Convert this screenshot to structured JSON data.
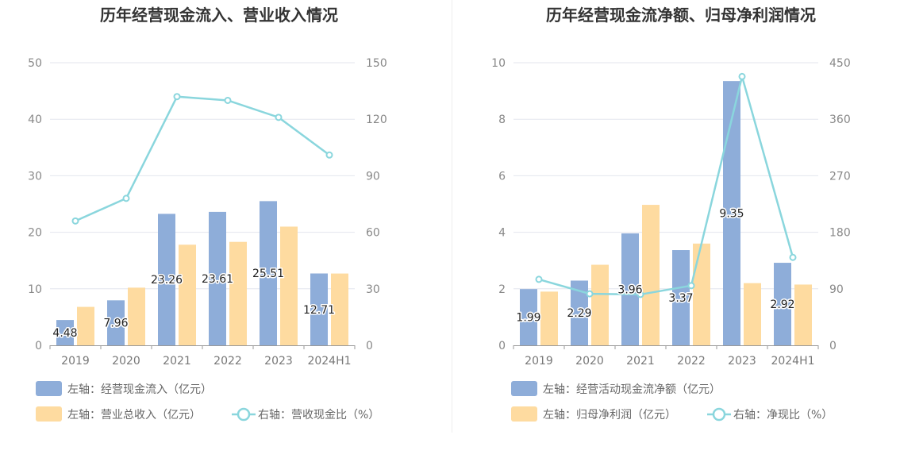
{
  "colors": {
    "inflow": "#8eadd9",
    "revenue": "#fedba0",
    "ratio": "#8ad6dd",
    "grid": "#e3e6ee",
    "axis": "#999999"
  },
  "chart_data": [
    {
      "type": "bar",
      "title": "历年经营现金流入、营业收入情况",
      "categories": [
        "2019",
        "2020",
        "2021",
        "2022",
        "2023",
        "2024H1"
      ],
      "series": [
        {
          "name": "左轴：经营现金流入（亿元）",
          "axis": "left",
          "kind": "bar",
          "values": [
            4.48,
            7.96,
            23.26,
            23.61,
            25.51,
            12.71
          ],
          "labels": [
            "4.48",
            "7.96",
            "23.26",
            "23.61",
            "25.51",
            "12.71"
          ]
        },
        {
          "name": "左轴：营业总收入（亿元）",
          "axis": "left",
          "kind": "bar",
          "values": [
            6.8,
            10.2,
            17.8,
            18.3,
            21.0,
            12.7
          ]
        },
        {
          "name": "右轴：营收现金比（%）",
          "axis": "right",
          "kind": "line",
          "values": [
            66,
            78,
            132,
            130,
            121,
            101
          ]
        }
      ],
      "ylim_left": [
        0,
        50
      ],
      "yticks_left": [
        "0",
        "10",
        "20",
        "30",
        "40",
        "50"
      ],
      "ylim_right": [
        0,
        150
      ],
      "yticks_right": [
        "0",
        "30",
        "60",
        "90",
        "120",
        "150"
      ],
      "legend": {
        "position": "bottom-left"
      }
    },
    {
      "type": "bar",
      "title": "历年经营现金流净额、归母净利润情况",
      "categories": [
        "2019",
        "2020",
        "2021",
        "2022",
        "2023",
        "2024H1"
      ],
      "series": [
        {
          "name": "左轴：经营活动现金流净额（亿元）",
          "axis": "left",
          "kind": "bar",
          "values": [
            1.99,
            2.29,
            3.96,
            3.37,
            9.35,
            2.92
          ],
          "labels": [
            "1.99",
            "2.29",
            "3.96",
            "3.37",
            "9.35",
            "2.92"
          ]
        },
        {
          "name": "左轴：归母净利润（亿元）",
          "axis": "left",
          "kind": "bar",
          "values": [
            1.9,
            2.85,
            4.97,
            3.6,
            2.2,
            2.15
          ]
        },
        {
          "name": "右轴：净现比（%）",
          "axis": "right",
          "kind": "line",
          "values": [
            105,
            82,
            81,
            95,
            428,
            140
          ]
        }
      ],
      "ylim_left": [
        0,
        10
      ],
      "yticks_left": [
        "0",
        "2",
        "4",
        "6",
        "8",
        "10"
      ],
      "ylim_right": [
        0,
        450
      ],
      "yticks_right": [
        "0",
        "90",
        "180",
        "270",
        "360",
        "450"
      ],
      "legend": {
        "position": "bottom-left"
      }
    }
  ]
}
